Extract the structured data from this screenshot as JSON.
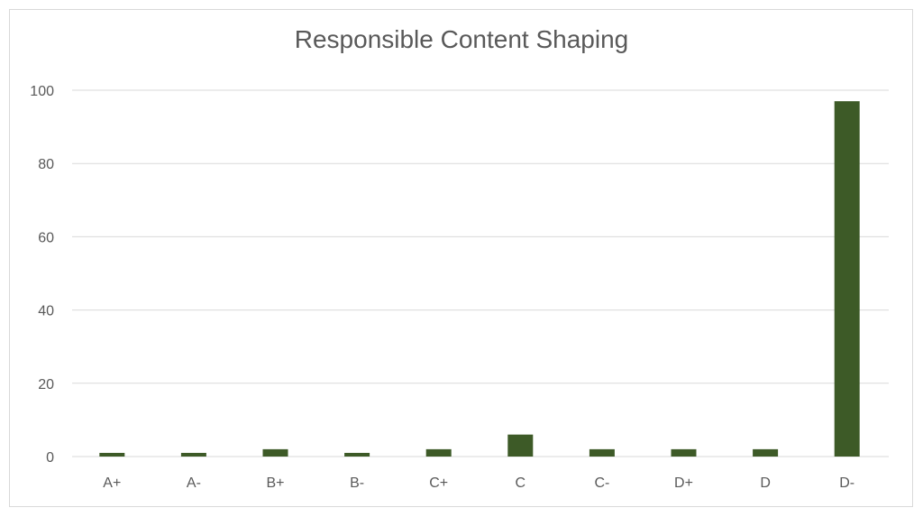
{
  "chart_data": {
    "type": "bar",
    "title": "Responsible Content Shaping",
    "xlabel": "",
    "ylabel": "",
    "categories": [
      "A+",
      "A-",
      "B+",
      "B-",
      "C+",
      "C",
      "C-",
      "D+",
      "D",
      "D-"
    ],
    "values": [
      1,
      1,
      2,
      1,
      2,
      6,
      2,
      2,
      2,
      97
    ],
    "ylim": [
      0,
      100
    ],
    "yticks": [
      0,
      20,
      40,
      60,
      80,
      100
    ],
    "grid": true,
    "legend": "none",
    "colors": {
      "bar": "#3d5a27",
      "grid": "#d9d9d9",
      "text": "#595959",
      "frame": "#d9d9d9"
    }
  }
}
